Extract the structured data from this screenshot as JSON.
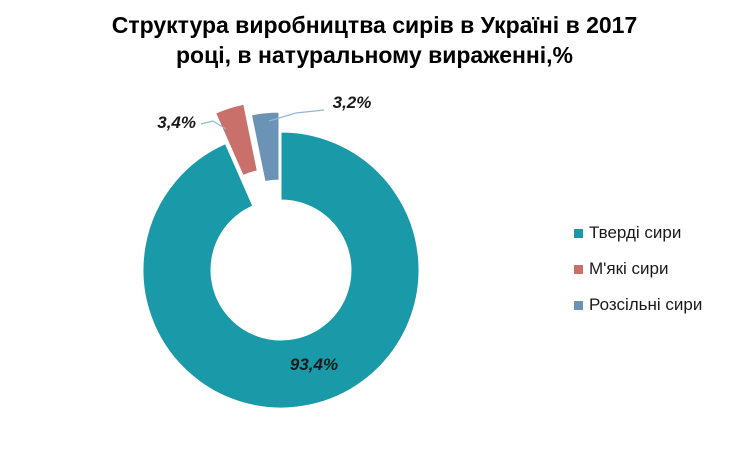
{
  "chart_data": {
    "type": "pie",
    "title": "Структура  виробництва  сирів в Україні в 2017 році, в натуральному вираженні,%",
    "categories": [
      "Тверді сири",
      "М'які сири",
      "Розсільні сири"
    ],
    "values": [
      93.4,
      3.4,
      3.2
    ],
    "labels": [
      "93,4%",
      "3,4%",
      "3,2%"
    ],
    "colors": [
      "#1a9aa9",
      "#c9706a",
      "#6b93b6"
    ],
    "donut": true,
    "exploded": [
      false,
      true,
      true
    ],
    "legend_position": "right"
  }
}
